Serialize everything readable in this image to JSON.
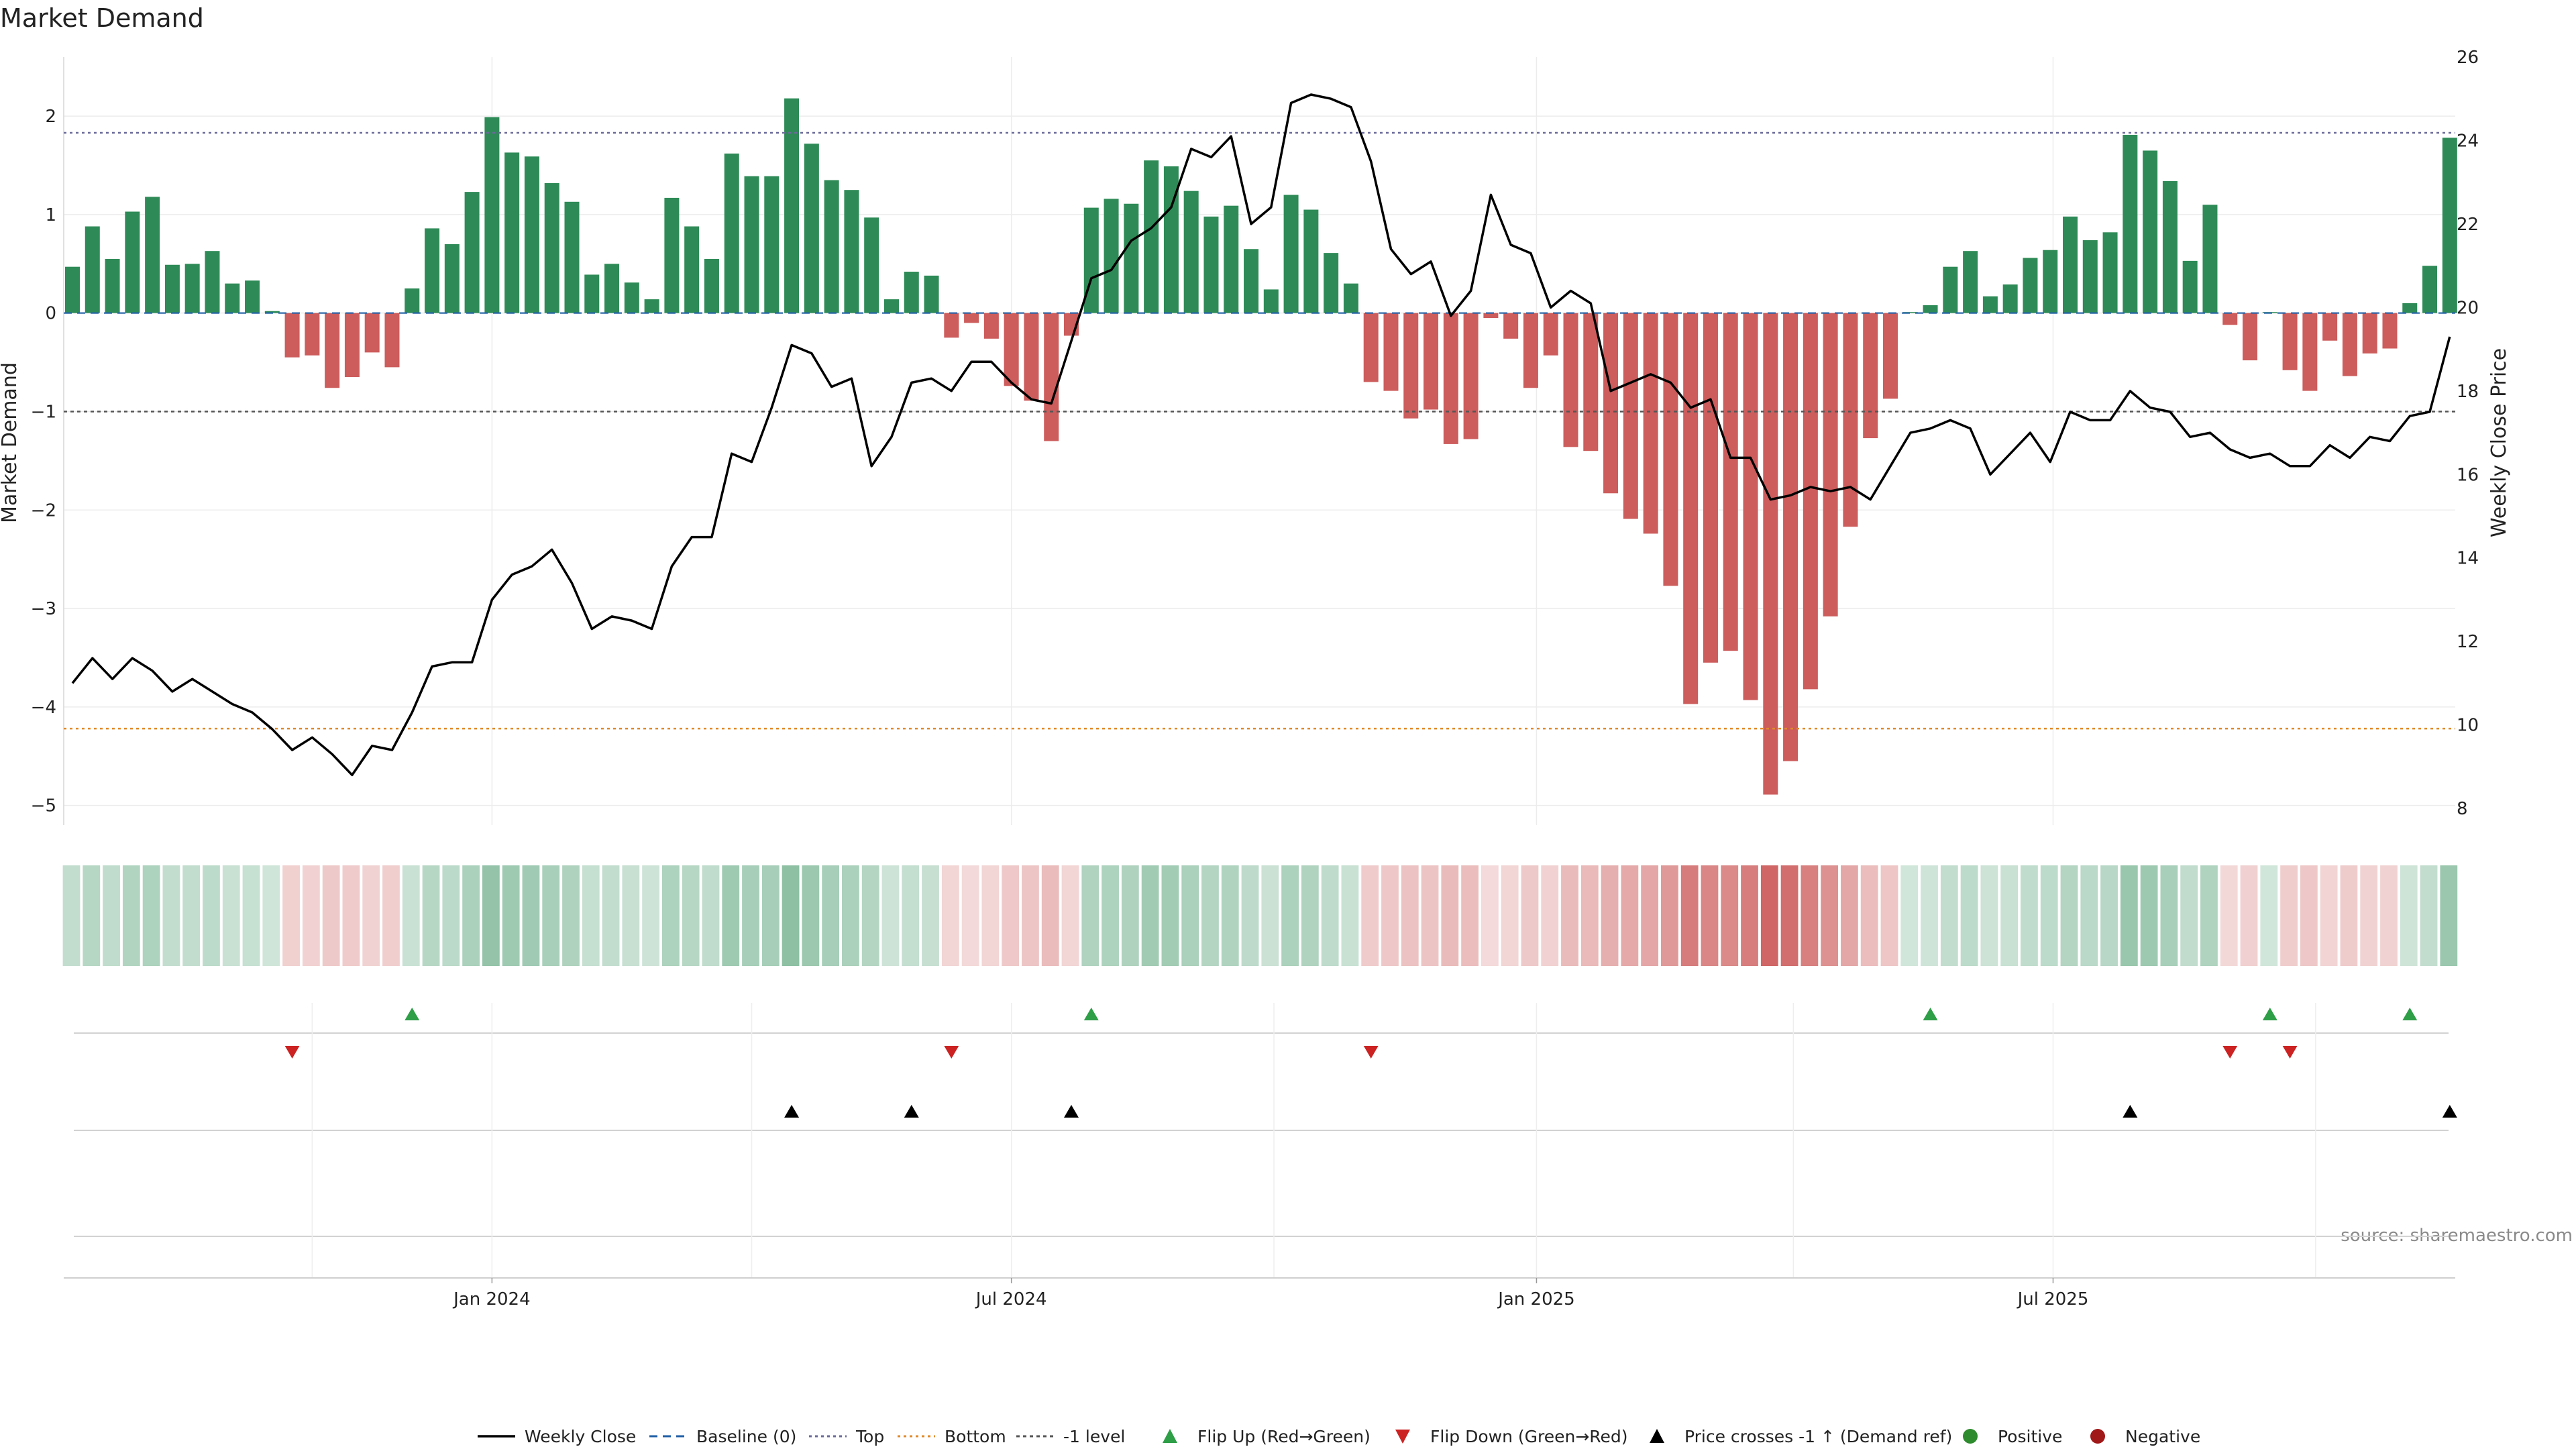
{
  "chart_data": {
    "type": "bar",
    "title": "Market Demand",
    "ylabel": "Market Demand",
    "y2label": "Weekly Close Price",
    "source": "source: sharemaestro.com",
    "ylim": [
      -5.2,
      2.6
    ],
    "y2lim": [
      7.6,
      26.0
    ],
    "yticks": [
      2,
      1,
      0,
      -1,
      -2,
      -3,
      -4,
      -5
    ],
    "ytick_labels": [
      "2",
      "1",
      "0",
      "−1",
      "−2",
      "−3",
      "−4",
      "−5"
    ],
    "y2ticks": [
      26,
      24,
      22,
      20,
      18,
      16,
      14,
      12,
      10,
      8
    ],
    "y2tick_labels": [
      "26",
      "24",
      "22",
      "20",
      "18",
      "16",
      "14",
      "12",
      "10",
      "8"
    ],
    "start_date": "2023-08-07",
    "x_date_ticks": [
      "2024-01-01",
      "2024-07-01",
      "2025-01-01",
      "2025-07-01"
    ],
    "x_tick_labels": [
      "Jan 2024",
      "Jul 2024",
      "Jan 2025",
      "Jul 2025"
    ],
    "top_level": 1.83,
    "bottom_level": -4.22,
    "minus_one_level": -1,
    "baseline": 0,
    "colors": {
      "positive": "#2e8b57",
      "negative": "#cd5c5c",
      "price": "#000000",
      "baseline": "#1f5fa6",
      "top": "#6a6a9a",
      "bottom": "#e08a2a",
      "minus_one": "#555555",
      "flip_up": "#2e9e47",
      "flip_down": "#cc2222",
      "cross": "#000000",
      "legend_positive": "#2e8b2e",
      "legend_negative": "#a01818"
    },
    "demand": [
      0.47,
      0.88,
      0.55,
      1.03,
      1.18,
      0.49,
      0.5,
      0.63,
      0.3,
      0.33,
      0.02,
      -0.45,
      -0.43,
      -0.76,
      -0.65,
      -0.4,
      -0.55,
      0.25,
      0.86,
      0.7,
      1.23,
      1.99,
      1.63,
      1.59,
      1.32,
      1.13,
      0.39,
      0.5,
      0.31,
      0.14,
      1.17,
      0.88,
      0.55,
      1.62,
      1.39,
      1.39,
      2.18,
      1.72,
      1.35,
      1.25,
      0.97,
      0.14,
      0.42,
      0.38,
      -0.25,
      -0.1,
      -0.26,
      -0.74,
      -0.89,
      -1.3,
      -0.23,
      1.07,
      1.16,
      1.11,
      1.55,
      1.49,
      1.24,
      0.98,
      1.09,
      0.65,
      0.24,
      1.2,
      1.05,
      0.61,
      0.3,
      -0.7,
      -0.79,
      -1.07,
      -0.98,
      -1.33,
      -1.28,
      -0.05,
      -0.26,
      -0.76,
      -0.43,
      -1.36,
      -1.4,
      -1.83,
      -2.09,
      -2.24,
      -2.77,
      -3.97,
      -3.55,
      -3.43,
      -3.93,
      -4.89,
      -4.55,
      -3.82,
      -3.08,
      -2.17,
      -1.27,
      -0.87,
      0.01,
      0.08,
      0.47,
      0.63,
      0.17,
      0.29,
      0.56,
      0.64,
      0.98,
      0.74,
      0.82,
      1.81,
      1.65,
      1.34,
      0.53,
      1.1,
      -0.12,
      -0.48,
      0.01,
      -0.58,
      -0.79,
      -0.28,
      -0.64,
      -0.41,
      -0.36,
      0.1,
      0.48,
      1.78
    ],
    "price": [
      11.0,
      11.6,
      11.1,
      11.6,
      11.3,
      10.8,
      11.1,
      10.8,
      10.5,
      10.3,
      9.9,
      9.4,
      9.7,
      9.3,
      8.8,
      9.5,
      9.4,
      10.3,
      11.4,
      11.5,
      11.5,
      13.0,
      13.6,
      13.8,
      14.2,
      13.4,
      12.3,
      12.6,
      12.5,
      12.3,
      13.8,
      14.5,
      14.5,
      16.5,
      16.3,
      17.6,
      19.1,
      18.9,
      18.1,
      18.3,
      16.2,
      16.9,
      18.2,
      18.3,
      18.0,
      18.7,
      18.7,
      18.2,
      17.8,
      17.7,
      19.2,
      20.7,
      20.9,
      21.6,
      21.9,
      22.4,
      23.8,
      23.6,
      24.1,
      22.0,
      22.4,
      24.9,
      25.1,
      25.0,
      24.8,
      23.5,
      21.4,
      20.8,
      21.1,
      19.8,
      20.4,
      22.7,
      21.5,
      21.3,
      20.0,
      20.4,
      20.1,
      18.0,
      18.2,
      18.4,
      18.2,
      17.6,
      17.8,
      16.4,
      16.4,
      15.4,
      15.5,
      15.7,
      15.6,
      15.7,
      15.4,
      16.2,
      17.0,
      17.1,
      17.3,
      17.1,
      16.0,
      16.5,
      17.0,
      16.3,
      17.5,
      17.3,
      17.3,
      18.0,
      17.6,
      17.5,
      16.9,
      17.0,
      16.6,
      16.4,
      16.5,
      16.2,
      16.2,
      16.7,
      16.4,
      16.9,
      16.8,
      17.4,
      17.5,
      19.3
    ],
    "flip_up_weeks": [
      17,
      51,
      93,
      110,
      117
    ],
    "flip_down_weeks": [
      11,
      44,
      65,
      108,
      111
    ],
    "cross_weeks": [
      36,
      42,
      50,
      103,
      119
    ],
    "legend": [
      {
        "label": "Weekly Close",
        "kind": "line"
      },
      {
        "label": "Baseline (0)",
        "kind": "dash-blue"
      },
      {
        "label": "Top",
        "kind": "dot-purple"
      },
      {
        "label": "Bottom",
        "kind": "dot-orange"
      },
      {
        "label": "-1 level",
        "kind": "dot-grey"
      },
      {
        "label": "Flip Up (Red→Green)",
        "kind": "tri-up-green"
      },
      {
        "label": "Flip Down (Green→Red)",
        "kind": "tri-down-red"
      },
      {
        "label": "Price crosses -1 ↑ (Demand ref)",
        "kind": "tri-up-black"
      },
      {
        "label": "Positive",
        "kind": "dot-green"
      },
      {
        "label": "Negative",
        "kind": "dot-red"
      }
    ]
  }
}
